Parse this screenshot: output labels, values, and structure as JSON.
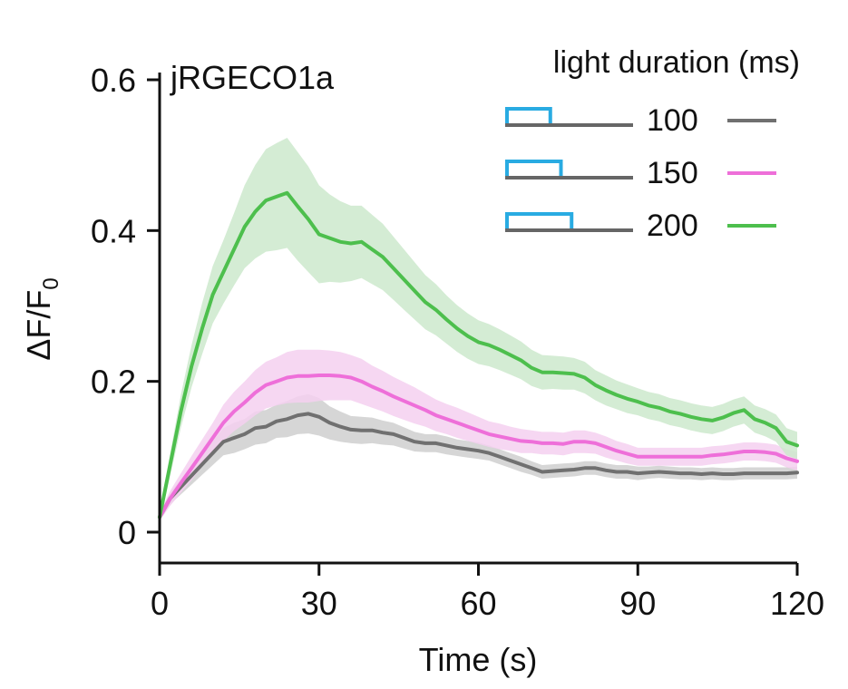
{
  "chart_data": {
    "type": "line",
    "panel_label": "jRGECO1a",
    "xlabel": "Time (s)",
    "ylabel_main": "ΔF/F",
    "ylabel_sub": "0",
    "xlim": [
      0,
      120
    ],
    "ylim": [
      -0.05,
      0.6
    ],
    "xticks": [
      0,
      30,
      60,
      90,
      120
    ],
    "xtick_labels": [
      "0",
      "30",
      "60",
      "90",
      "120"
    ],
    "yticks": [
      0,
      0.2,
      0.4,
      0.6
    ],
    "ytick_labels": [
      "0",
      "0.2",
      "0.4",
      "0.6"
    ],
    "legend_title": "light duration (ms)",
    "legend_position": "top-right",
    "pulse_color": "#29abe2",
    "baseline_color": "#666666",
    "series": [
      {
        "name": "100",
        "color": "#707070",
        "band_color": "#cfcfcf",
        "pulse_fraction": 0.33,
        "x": [
          0,
          2,
          4,
          6,
          8,
          10,
          12,
          14,
          16,
          18,
          20,
          22,
          24,
          26,
          28,
          30,
          32,
          34,
          36,
          38,
          40,
          42,
          44,
          46,
          48,
          50,
          52,
          54,
          56,
          58,
          60,
          62,
          64,
          66,
          68,
          70,
          72,
          74,
          76,
          78,
          80,
          82,
          84,
          86,
          88,
          90,
          92,
          94,
          96,
          98,
          100,
          102,
          104,
          106,
          108,
          110,
          112,
          114,
          116,
          118,
          120
        ],
        "y": [
          0.02,
          0.045,
          0.06,
          0.075,
          0.09,
          0.105,
          0.12,
          0.125,
          0.13,
          0.138,
          0.14,
          0.147,
          0.15,
          0.155,
          0.157,
          0.153,
          0.145,
          0.14,
          0.136,
          0.135,
          0.135,
          0.132,
          0.13,
          0.125,
          0.12,
          0.118,
          0.118,
          0.115,
          0.112,
          0.11,
          0.108,
          0.105,
          0.1,
          0.095,
          0.09,
          0.085,
          0.08,
          0.081,
          0.082,
          0.083,
          0.085,
          0.085,
          0.082,
          0.08,
          0.08,
          0.078,
          0.079,
          0.08,
          0.079,
          0.078,
          0.078,
          0.077,
          0.078,
          0.077,
          0.077,
          0.078,
          0.078,
          0.078,
          0.078,
          0.078,
          0.079
        ],
        "err": [
          0.005,
          0.008,
          0.01,
          0.012,
          0.014,
          0.016,
          0.018,
          0.02,
          0.02,
          0.022,
          0.022,
          0.022,
          0.024,
          0.025,
          0.026,
          0.025,
          0.022,
          0.02,
          0.018,
          0.018,
          0.017,
          0.016,
          0.015,
          0.014,
          0.013,
          0.012,
          0.012,
          0.012,
          0.011,
          0.011,
          0.011,
          0.01,
          0.01,
          0.01,
          0.01,
          0.009,
          0.009,
          0.009,
          0.009,
          0.009,
          0.009,
          0.009,
          0.009,
          0.009,
          0.009,
          0.009,
          0.008,
          0.008,
          0.008,
          0.008,
          0.008,
          0.008,
          0.008,
          0.008,
          0.008,
          0.008,
          0.008,
          0.008,
          0.008,
          0.008,
          0.008
        ]
      },
      {
        "name": "150",
        "color": "#ee6fd9",
        "band_color": "#f4d0f0",
        "pulse_fraction": 0.5,
        "x": [
          0,
          2,
          4,
          6,
          8,
          10,
          12,
          14,
          16,
          18,
          20,
          22,
          24,
          26,
          28,
          30,
          32,
          34,
          36,
          38,
          40,
          42,
          44,
          46,
          48,
          50,
          52,
          54,
          56,
          58,
          60,
          62,
          64,
          66,
          68,
          70,
          72,
          74,
          76,
          78,
          80,
          82,
          84,
          86,
          88,
          90,
          92,
          94,
          96,
          98,
          100,
          102,
          104,
          106,
          108,
          110,
          112,
          114,
          116,
          118,
          120
        ],
        "y": [
          0.02,
          0.045,
          0.065,
          0.085,
          0.105,
          0.125,
          0.145,
          0.16,
          0.172,
          0.185,
          0.195,
          0.2,
          0.205,
          0.207,
          0.207,
          0.208,
          0.208,
          0.207,
          0.205,
          0.2,
          0.193,
          0.187,
          0.18,
          0.174,
          0.168,
          0.162,
          0.155,
          0.15,
          0.145,
          0.14,
          0.135,
          0.13,
          0.127,
          0.124,
          0.121,
          0.12,
          0.118,
          0.118,
          0.117,
          0.12,
          0.12,
          0.118,
          0.113,
          0.108,
          0.104,
          0.1,
          0.1,
          0.1,
          0.1,
          0.1,
          0.1,
          0.1,
          0.102,
          0.103,
          0.105,
          0.107,
          0.107,
          0.106,
          0.104,
          0.098,
          0.094
        ],
        "err": [
          0.005,
          0.01,
          0.013,
          0.016,
          0.018,
          0.02,
          0.024,
          0.026,
          0.028,
          0.03,
          0.031,
          0.032,
          0.034,
          0.035,
          0.035,
          0.034,
          0.033,
          0.032,
          0.03,
          0.03,
          0.028,
          0.027,
          0.026,
          0.025,
          0.024,
          0.022,
          0.021,
          0.02,
          0.02,
          0.019,
          0.018,
          0.017,
          0.017,
          0.016,
          0.016,
          0.015,
          0.015,
          0.015,
          0.015,
          0.015,
          0.015,
          0.014,
          0.014,
          0.013,
          0.013,
          0.012,
          0.012,
          0.012,
          0.012,
          0.012,
          0.012,
          0.012,
          0.012,
          0.012,
          0.012,
          0.012,
          0.012,
          0.012,
          0.012,
          0.012,
          0.012
        ]
      },
      {
        "name": "200",
        "color": "#4dbf4d",
        "band_color": "#cde9cd",
        "pulse_fraction": 0.67,
        "x": [
          0,
          2,
          4,
          6,
          8,
          10,
          12,
          14,
          16,
          18,
          20,
          22,
          24,
          26,
          28,
          30,
          32,
          34,
          36,
          38,
          40,
          42,
          44,
          46,
          48,
          50,
          52,
          54,
          56,
          58,
          60,
          62,
          64,
          66,
          68,
          70,
          72,
          74,
          76,
          78,
          80,
          82,
          84,
          86,
          88,
          90,
          92,
          94,
          96,
          98,
          100,
          102,
          104,
          106,
          108,
          110,
          112,
          114,
          116,
          118,
          120
        ],
        "y": [
          0.02,
          0.09,
          0.16,
          0.22,
          0.27,
          0.315,
          0.345,
          0.375,
          0.405,
          0.425,
          0.44,
          0.445,
          0.45,
          0.432,
          0.415,
          0.395,
          0.39,
          0.385,
          0.383,
          0.385,
          0.375,
          0.365,
          0.35,
          0.335,
          0.32,
          0.305,
          0.295,
          0.282,
          0.27,
          0.26,
          0.252,
          0.248,
          0.242,
          0.235,
          0.228,
          0.218,
          0.212,
          0.212,
          0.211,
          0.21,
          0.205,
          0.195,
          0.188,
          0.182,
          0.177,
          0.173,
          0.168,
          0.165,
          0.16,
          0.157,
          0.153,
          0.15,
          0.148,
          0.152,
          0.158,
          0.162,
          0.15,
          0.145,
          0.138,
          0.12,
          0.115
        ],
        "err": [
          0.008,
          0.015,
          0.022,
          0.028,
          0.034,
          0.038,
          0.042,
          0.048,
          0.055,
          0.062,
          0.068,
          0.071,
          0.073,
          0.072,
          0.07,
          0.065,
          0.058,
          0.054,
          0.05,
          0.048,
          0.046,
          0.044,
          0.042,
          0.04,
          0.038,
          0.036,
          0.034,
          0.032,
          0.031,
          0.03,
          0.029,
          0.028,
          0.027,
          0.026,
          0.025,
          0.024,
          0.023,
          0.022,
          0.022,
          0.021,
          0.021,
          0.02,
          0.02,
          0.019,
          0.019,
          0.018,
          0.018,
          0.018,
          0.018,
          0.018,
          0.018,
          0.018,
          0.018,
          0.018,
          0.018,
          0.018,
          0.018,
          0.018,
          0.018,
          0.018,
          0.018
        ]
      }
    ]
  }
}
